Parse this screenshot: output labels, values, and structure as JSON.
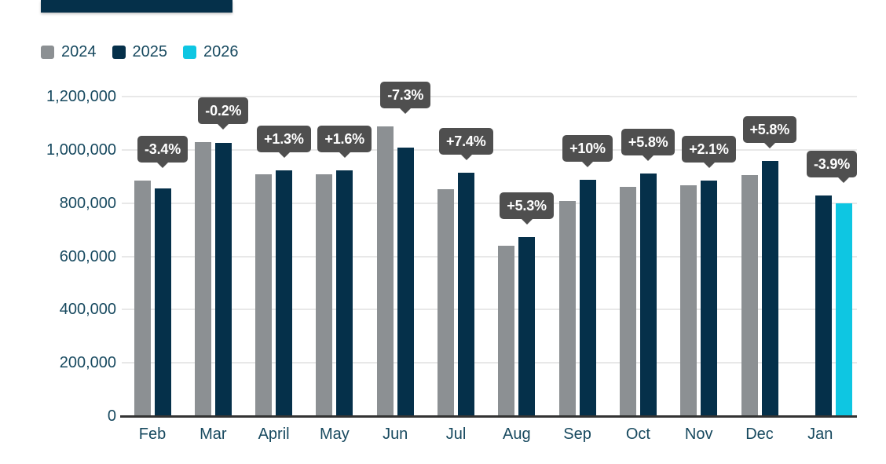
{
  "header": {
    "bar_color": "#05304a"
  },
  "legend": {
    "items": [
      {
        "label": "2024",
        "color": "#8c9093"
      },
      {
        "label": "2025",
        "color": "#05304a"
      },
      {
        "label": "2026",
        "color": "#0ec6e2"
      }
    ]
  },
  "chart_data": {
    "type": "bar",
    "title": "",
    "categories": [
      "Feb",
      "Mar",
      "April",
      "May",
      "Jun",
      "Jul",
      "Aug",
      "Sep",
      "Oct",
      "Nov",
      "Dec",
      "Jan"
    ],
    "series": [
      {
        "name": "2024",
        "color": "#8c9093",
        "values": [
          884000,
          1030000,
          910000,
          908000,
          1088000,
          852000,
          640000,
          808000,
          862000,
          867000,
          906000,
          null
        ]
      },
      {
        "name": "2025",
        "color": "#05304a",
        "values": [
          854000,
          1028000,
          922000,
          923000,
          1009000,
          915000,
          674000,
          889000,
          912000,
          885000,
          959000,
          830000
        ]
      },
      {
        "name": "2026",
        "color": "#0ec6e2",
        "values": [
          null,
          null,
          null,
          null,
          null,
          null,
          null,
          null,
          null,
          null,
          null,
          798000
        ]
      }
    ],
    "annotations": [
      "-3.4%",
      "-0.2%",
      "+1.3%",
      "+1.6%",
      "-7.3%",
      "+7.4%",
      "+5.3%",
      "+10%",
      "+5.8%",
      "+2.1%",
      "+5.8%",
      "-3.9%"
    ],
    "y_ticks": [
      "0",
      "200,000",
      "400,000",
      "600,000",
      "800,000",
      "1,000,000",
      "1,200,000"
    ],
    "ylim": [
      0,
      1200000
    ],
    "grid": true,
    "legend_position": "top-left",
    "annotation_style": {
      "bg": "#4f4f4f",
      "text": "#ffffff"
    },
    "axis_text_color": "#17495f"
  }
}
